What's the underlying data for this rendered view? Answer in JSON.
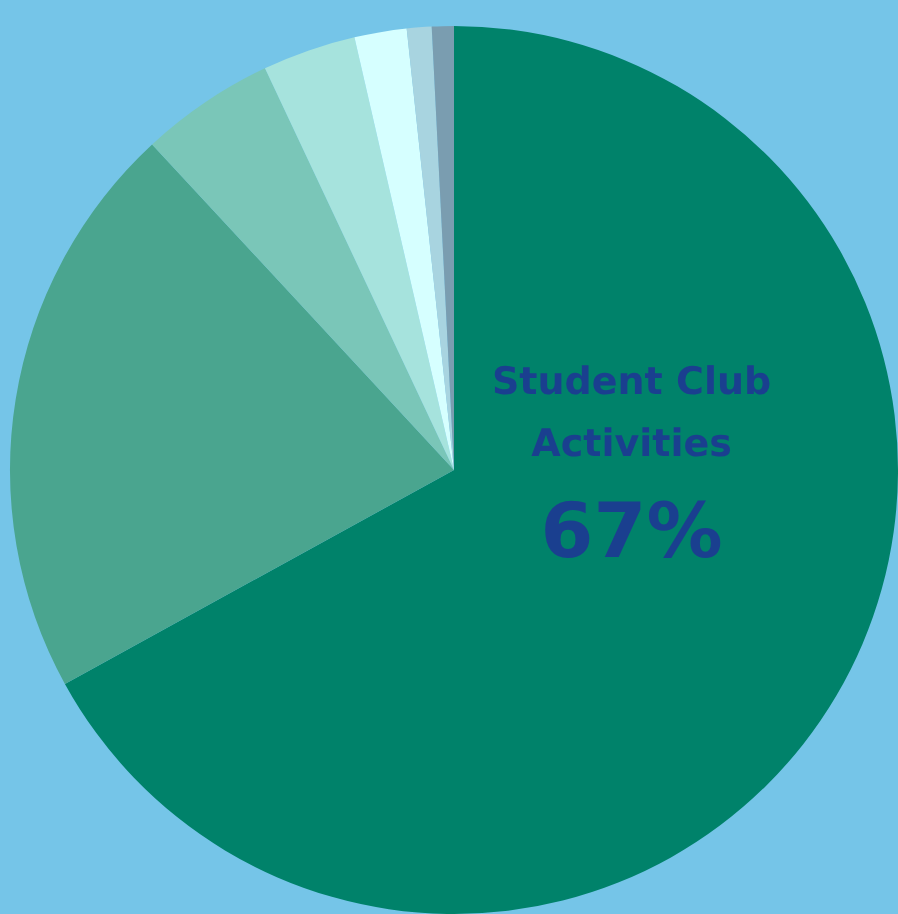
{
  "chart_data": {
    "type": "pie",
    "categories": [
      "Student Club Activities",
      null,
      null,
      null,
      null,
      null,
      null
    ],
    "values": [
      67,
      21.1,
      4.9,
      3.4,
      1.9,
      0.9,
      0.8
    ],
    "value_labels": [
      "67%",
      null,
      null,
      null,
      null,
      null,
      null
    ],
    "colors": [
      "#00826a",
      "#4aa58f",
      "#7ac6b8",
      "#a6e3dd",
      "#d6ffff",
      "#a8d4e0",
      "#7a9db0"
    ],
    "legend": false
  }
}
